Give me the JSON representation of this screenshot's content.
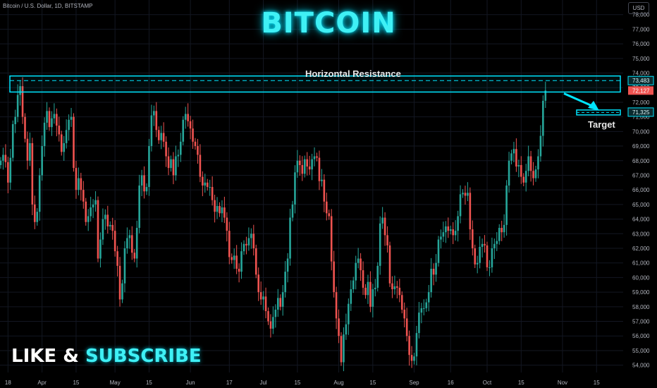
{
  "header": {
    "symbol": "Bitcoin / U.S. Dollar, 1D, BITSTAMP",
    "currency": "USD"
  },
  "title": "BITCOIN",
  "cta": {
    "word1": "LIKE & ",
    "word2": "SUBSCRIBE"
  },
  "colors": {
    "up": "#26a69a",
    "down": "#ef5350",
    "accent": "#00e5ff",
    "grid": "#131722"
  },
  "annotations": {
    "resistance_label": "Horizontal Resistance",
    "target_label": "Target"
  },
  "chart_data": {
    "type": "candlestick",
    "ylim": [
      53500,
      79000
    ],
    "y_ticks": [
      54000,
      55000,
      56000,
      57000,
      58000,
      59000,
      60000,
      61000,
      62000,
      63000,
      64000,
      65000,
      66000,
      67000,
      68000,
      69000,
      70000,
      71000,
      72000,
      73000,
      74000,
      75000,
      76000,
      77000,
      78000
    ],
    "x_ticks": [
      {
        "label": "18",
        "i": 3
      },
      {
        "label": "Apr",
        "i": 17
      },
      {
        "label": "15",
        "i": 31
      },
      {
        "label": "May",
        "i": 47
      },
      {
        "label": "15",
        "i": 61
      },
      {
        "label": "Jun",
        "i": 78
      },
      {
        "label": "17",
        "i": 94
      },
      {
        "label": "Jul",
        "i": 108
      },
      {
        "label": "15",
        "i": 122
      },
      {
        "label": "Aug",
        "i": 139
      },
      {
        "label": "15",
        "i": 153
      },
      {
        "label": "Sep",
        "i": 170
      },
      {
        "label": "16",
        "i": 185
      },
      {
        "label": "Oct",
        "i": 200
      },
      {
        "label": "15",
        "i": 214
      },
      {
        "label": "Nov",
        "i": 231
      },
      {
        "label": "15",
        "i": 245
      }
    ],
    "candles_start_date": "2024-03-13",
    "closes": [
      68000,
      68400,
      67900,
      66500,
      68200,
      70500,
      71000,
      72500,
      73100,
      71000,
      69500,
      68000,
      69200,
      65000,
      63800,
      64500,
      67000,
      69000,
      70600,
      71400,
      70300,
      70900,
      71200,
      70400,
      69800,
      68600,
      69200,
      70100,
      70800,
      71000,
      67500,
      66000,
      66800,
      66000,
      65200,
      63800,
      64200,
      64800,
      65000,
      65300,
      61300,
      62600,
      64000,
      64300,
      63500,
      63600,
      63200,
      61800,
      60800,
      58500,
      59600,
      62000,
      62700,
      62900,
      61700,
      61300,
      63400,
      66300,
      67000,
      65900,
      66200,
      69000,
      71100,
      71400,
      70100,
      69400,
      69900,
      69300,
      68300,
      67500,
      68100,
      67000,
      68300,
      68400,
      69300,
      70800,
      71200,
      70700,
      70200,
      69300,
      69000,
      68400,
      66900,
      66300,
      66500,
      66200,
      66200,
      65300,
      64500,
      64900,
      64400,
      64800,
      64100,
      63200,
      61400,
      61200,
      61500,
      60600,
      60400,
      61800,
      62300,
      62200,
      62700,
      63000,
      62000,
      60200,
      59000,
      58500,
      58700,
      57700,
      57000,
      56500,
      57300,
      57800,
      58600,
      58000,
      59000,
      60400,
      61300,
      64100,
      65000,
      67200,
      68000,
      67700,
      67100,
      68100,
      67600,
      67400,
      68100,
      68300,
      68200,
      66600,
      66700,
      65200,
      64400,
      64200,
      61100,
      59000,
      57200,
      56000,
      54200,
      56100,
      56800,
      58200,
      59200,
      59800,
      61000,
      61300,
      60500,
      59300,
      58800,
      59700,
      58000,
      59200,
      59300,
      60800,
      63700,
      64100,
      62900,
      62200,
      59600,
      59200,
      59400,
      59300,
      58800,
      57800,
      57200,
      56000,
      54700,
      54300,
      54600,
      56200,
      57600,
      57900,
      57900,
      58300,
      59000,
      60600,
      60200,
      61000,
      62600,
      62800,
      63100,
      63500,
      63200,
      63300,
      62900,
      63200,
      64200,
      65700,
      65800,
      65600,
      65800,
      63300,
      62000,
      60900,
      61000,
      62100,
      62300,
      62200,
      60700,
      60700,
      62000,
      62300,
      62500,
      63400,
      63100,
      63600,
      66300,
      68000,
      68500,
      68800,
      67600,
      67700,
      66900,
      66500,
      67300,
      68300,
      67300,
      66800,
      67400,
      68300,
      69700,
      72100,
      72800
    ],
    "key_levels": {
      "resistance_top": 73800,
      "resistance_mid": 73483,
      "resistance_bottom": 72700,
      "target": 71325
    },
    "price_labels": {
      "resistance": "73,483",
      "current": "72,127",
      "target": "71,325"
    }
  }
}
